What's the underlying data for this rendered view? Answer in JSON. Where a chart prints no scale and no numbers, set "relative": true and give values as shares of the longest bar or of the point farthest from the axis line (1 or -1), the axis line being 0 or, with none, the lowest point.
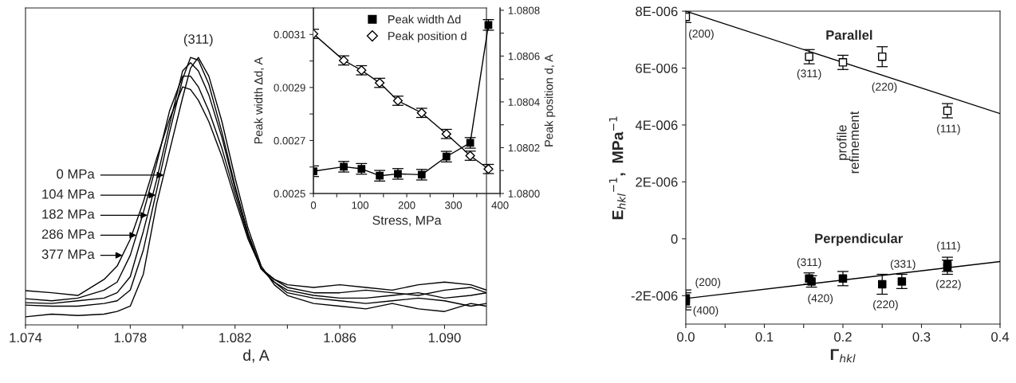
{
  "chart_data": [
    {
      "type": "line",
      "relative": true,
      "xlabel": "d, A",
      "xlim": [
        1.074,
        1.0916
      ],
      "xticks": [
        1.074,
        {
          "value": 1.076,
          "label": null
        },
        1.078,
        {
          "value": 1.08,
          "label": null
        },
        1.082,
        {
          "value": 1.084,
          "label": null
        },
        1.086,
        {
          "value": 1.088,
          "label": null
        },
        {
          "value": 1.09,
          "label": "1.090"
        }
      ],
      "tick_labels": "x",
      "grid": false,
      "legend": "left",
      "x": [
        1.074,
        1.075,
        1.076,
        1.077,
        1.0775,
        1.078,
        1.0785,
        1.079,
        1.0795,
        1.08,
        1.0803,
        1.0806,
        1.081,
        1.0815,
        1.082,
        1.0825,
        1.083,
        1.0835,
        1.084,
        1.085,
        1.086,
        1.087,
        1.088,
        1.089,
        1.09,
        1.091,
        1.0916
      ],
      "series": [
        {
          "name": "0 MPa",
          "color": "#000000",
          "values": [
            0.03,
            0.04,
            0.035,
            0.04,
            0.05,
            0.07,
            0.19,
            0.45,
            0.65,
            0.85,
            0.96,
            1.0,
            0.93,
            0.76,
            0.55,
            0.36,
            0.22,
            0.15,
            0.11,
            0.08,
            0.07,
            0.06,
            0.08,
            0.06,
            0.05,
            0.08,
            0.07
          ]
        },
        {
          "name": "104 MPa",
          "color": "#000000",
          "values": [
            0.074,
            0.07,
            0.07,
            0.08,
            0.09,
            0.13,
            0.28,
            0.5,
            0.72,
            0.92,
            1.0,
            0.99,
            0.9,
            0.72,
            0.52,
            0.34,
            0.21,
            0.16,
            0.12,
            0.1,
            0.09,
            0.08,
            0.09,
            0.1,
            0.09,
            0.07,
            0.08
          ]
        },
        {
          "name": "182 MPa",
          "color": "#000000",
          "values": [
            0.083,
            0.08,
            0.09,
            0.1,
            0.12,
            0.18,
            0.35,
            0.54,
            0.75,
            0.95,
            0.98,
            0.95,
            0.86,
            0.7,
            0.51,
            0.34,
            0.21,
            0.16,
            0.13,
            0.11,
            0.1,
            0.1,
            0.11,
            0.12,
            0.1,
            0.11,
            0.12
          ]
        },
        {
          "name": "286 MPa",
          "color": "#000000",
          "values": [
            0.098,
            0.09,
            0.1,
            0.13,
            0.16,
            0.26,
            0.42,
            0.6,
            0.8,
            0.93,
            0.93,
            0.89,
            0.8,
            0.66,
            0.49,
            0.33,
            0.21,
            0.17,
            0.14,
            0.12,
            0.12,
            0.13,
            0.12,
            0.11,
            0.13,
            0.14,
            0.12
          ]
        },
        {
          "name": "377 MPa",
          "color": "#000000",
          "values": [
            0.128,
            0.12,
            0.11,
            0.17,
            0.22,
            0.32,
            0.46,
            0.62,
            0.77,
            0.89,
            0.88,
            0.84,
            0.76,
            0.63,
            0.47,
            0.32,
            0.21,
            0.17,
            0.15,
            0.14,
            0.15,
            0.14,
            0.13,
            0.15,
            0.16,
            0.15,
            0.13
          ]
        }
      ],
      "annotations": [
        "(311)"
      ]
    },
    {
      "type": "line",
      "xlabel": "Stress, MPa",
      "ylabel": "Peak width Δd, A",
      "y2label": "Peak position d, A",
      "xlim": [
        0,
        400
      ],
      "xticks": [
        0,
        {
          "value": 50,
          "label": null
        },
        100,
        {
          "value": 150,
          "label": null
        },
        200,
        {
          "value": 250,
          "label": null
        },
        300,
        {
          "value": 350,
          "label": null
        },
        400
      ],
      "ylim": [
        0.0025,
        0.0032
      ],
      "yticks": [
        0.0025,
        {
          "value": 0.0026,
          "label": null
        },
        0.0027,
        {
          "value": 0.0028,
          "label": null
        },
        0.0029,
        {
          "value": 0.003,
          "label": null
        },
        0.0031
      ],
      "y2lim": [
        1.08,
        1.08081
      ],
      "y2ticks": [
        {
          "value": 1.08,
          "label": "1.0800"
        },
        {
          "value": 1.0801,
          "label": null
        },
        {
          "value": 1.0802,
          "label": "1.0802"
        },
        {
          "value": 1.0803,
          "label": null
        },
        {
          "value": 1.0804,
          "label": "1.0804"
        },
        {
          "value": 1.0805,
          "label": null
        },
        {
          "value": 1.0806,
          "label": "1.0806"
        },
        {
          "value": 1.0807,
          "label": null
        },
        {
          "value": 1.0808,
          "label": "1.0808"
        }
      ],
      "grid": false,
      "legend": "top right",
      "x": [
        0,
        65,
        103,
        142,
        181,
        232,
        285,
        336,
        375
      ],
      "series": [
        {
          "name": "Peak width Δd",
          "color": "#000000",
          "marker": "square",
          "values": [
            0.002584,
            0.002601,
            0.002593,
            0.002567,
            0.002574,
            0.002571,
            0.002639,
            0.002691,
            0.003136
          ],
          "errors": [
            2e-05,
            2e-05,
            2e-05,
            2e-05,
            2e-05,
            2e-05,
            2e-05,
            2e-05,
            2e-05
          ]
        },
        {
          "name": "Peak position d",
          "color": "#000000",
          "marker": "diamond",
          "axis": "y2",
          "values": [
            1.080697,
            1.080581,
            1.080538,
            1.080483,
            1.080405,
            1.080352,
            1.08026,
            1.080165,
            1.080107
          ],
          "errors": [
            2e-05,
            2e-05,
            2e-05,
            2e-05,
            2e-05,
            2e-05,
            2e-05,
            2e-05,
            2e-05
          ]
        }
      ]
    },
    {
      "type": "scatter",
      "xlabel": "Γ$_{hkl}$",
      "ylabel": "E$_{hkl}$$^{−1}$,  MPa$^{−1}$",
      "xlim": [
        0,
        0.4
      ],
      "xticks": [
        {
          "value": 0,
          "label": "0.0"
        },
        {
          "value": 0.05,
          "label": null
        },
        0.1,
        {
          "value": 0.15,
          "label": null
        },
        0.2,
        {
          "value": 0.25,
          "label": null
        },
        0.3,
        {
          "value": 0.35,
          "label": null
        },
        0.4
      ],
      "ylim": [
        -3e-06,
        8e-06
      ],
      "yticks": [
        {
          "value": -2e-06,
          "label": "-2E-006"
        },
        0,
        {
          "value": 2e-06,
          "label": "2E-006"
        },
        {
          "value": 4e-06,
          "label": "4E-006"
        },
        {
          "value": 6e-06,
          "label": "6E-006"
        },
        {
          "value": 8e-06,
          "label": "8E-006"
        }
      ],
      "grid": false,
      "legend": false,
      "series": [
        {
          "color": "#000000",
          "marker": "square",
          "x": [
            0,
            0.157,
            0.2,
            0.25,
            0.333
          ],
          "values": [
            7.8e-06,
            6.4e-06,
            6.2e-06,
            6.4e-06,
            4.5e-06
          ],
          "errors": [
            2e-07,
            2.5e-07,
            2.5e-07,
            3.5e-07,
            2.5e-07
          ]
        },
        {
          "color": "#000000",
          "marker": "square",
          "x": [
            0,
            0,
            0.157,
            0.16,
            0.2,
            0.25,
            0.275,
            0.333,
            0.333
          ],
          "values": [
            -2.1e-06,
            -2.2e-06,
            -1.4e-06,
            -1.5e-06,
            -1.4e-06,
            -1.6e-06,
            -1.5e-06,
            -9e-07,
            -1e-06
          ],
          "errors": [
            3e-07,
            3e-07,
            2e-07,
            2e-07,
            2.5e-07,
            3.5e-07,
            2.5e-07,
            2.5e-07,
            2.5e-07
          ]
        },
        {
          "type": "line",
          "color": "#000000",
          "x": [
            0,
            0.4
          ],
          "values": [
            8e-06,
            4.4e-06
          ]
        },
        {
          "type": "line",
          "color": "#000000",
          "x": [
            0,
            0.4
          ],
          "values": [
            -2.1e-06,
            -8e-07
          ]
        }
      ],
      "annotations": [
        "Parallel",
        "Perpendicular",
        "profile\nrefinement",
        {
          "text": "(200)",
          "x": 0,
          "y": 7.8e-06
        },
        {
          "text": "(311)",
          "x": 0.157,
          "y": 6.4e-06
        },
        {
          "text": "(220)",
          "x": 0.25,
          "y": 6.4e-06
        },
        {
          "text": "(111)",
          "x": 0.333,
          "y": 4.5e-06
        },
        {
          "text": "(200)",
          "x": 0,
          "y": -2.1e-06
        },
        {
          "text": "(400)",
          "x": 0,
          "y": -2.2e-06
        },
        {
          "text": "(311)",
          "x": 0.157,
          "y": -1.4e-06
        },
        {
          "text": "(420)",
          "x": 0.16,
          "y": -1.5e-06
        },
        {
          "text": "(220)",
          "x": 0.25,
          "y": -1.6e-06
        },
        {
          "text": "(331)",
          "x": 0.275,
          "y": -1.5e-06
        },
        {
          "text": "(111)",
          "x": 0.333,
          "y": -9e-07
        },
        {
          "text": "(222)",
          "x": 0.333,
          "y": -1e-06
        }
      ]
    }
  ]
}
